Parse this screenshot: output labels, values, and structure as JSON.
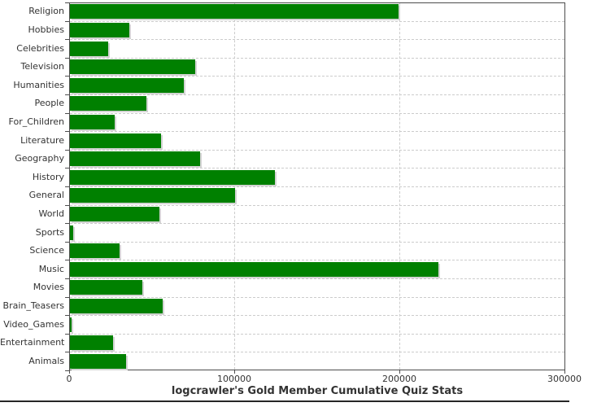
{
  "chart_data": {
    "type": "bar",
    "orientation": "horizontal",
    "title": "logcrawler's Gold Member Cumulative Quiz Stats",
    "categories": [
      "Religion",
      "Hobbies",
      "Celebrities",
      "Television",
      "Humanities",
      "People",
      "For_Children",
      "Literature",
      "Geography",
      "History",
      "General",
      "World",
      "Sports",
      "Science",
      "Music",
      "Movies",
      "Brain_Teasers",
      "Video_Games",
      "Entertainment",
      "Animals"
    ],
    "values": [
      199000,
      36000,
      23000,
      76000,
      69000,
      46500,
      27000,
      55000,
      79000,
      124000,
      100000,
      54000,
      2000,
      30000,
      223000,
      44000,
      56000,
      1200,
      26000,
      34000
    ],
    "xlabel": "",
    "ylabel": "",
    "xlim": [
      0,
      300000
    ],
    "x_ticks": [
      0,
      100000,
      200000,
      300000
    ],
    "x_tick_labels": [
      "0",
      "100000",
      "200000",
      "300000"
    ],
    "legend": "none",
    "grid": "dashed",
    "colors": {
      "bar": "#008000",
      "bar_shadow": "#d4d4d4",
      "grid_line": "#cccccc",
      "plot_border": "#4d4d4d",
      "text": "#333333",
      "bottom_rule": "#262626",
      "background": "#ffffff"
    }
  }
}
